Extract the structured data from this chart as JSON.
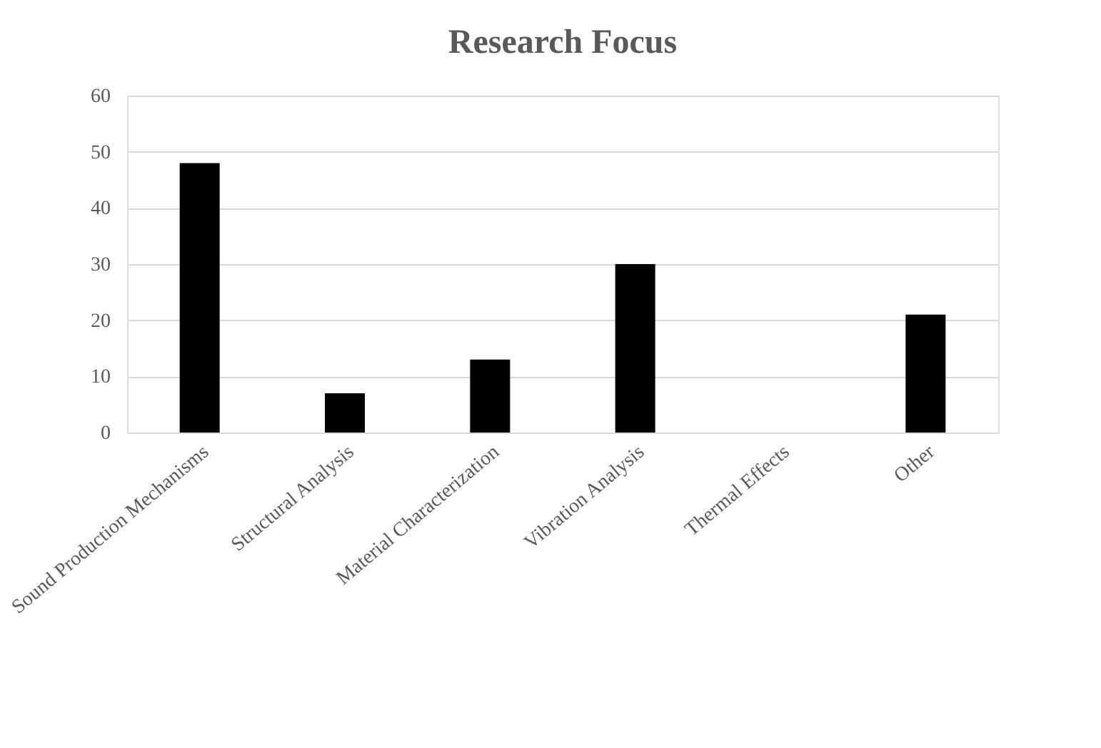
{
  "chart_data": {
    "type": "bar",
    "title": "Research Focus",
    "categories": [
      "Sound Production Mechanisms",
      "Structural Analysis",
      "Material Characterization",
      "Vibration Analysis",
      "Thermal Effects",
      "Other"
    ],
    "values": [
      48,
      7,
      13,
      30,
      0,
      21
    ],
    "color": "#000000",
    "ylim": [
      0,
      60
    ],
    "yticks": [
      0,
      10,
      20,
      30,
      40,
      50,
      60
    ],
    "grid": "y"
  }
}
